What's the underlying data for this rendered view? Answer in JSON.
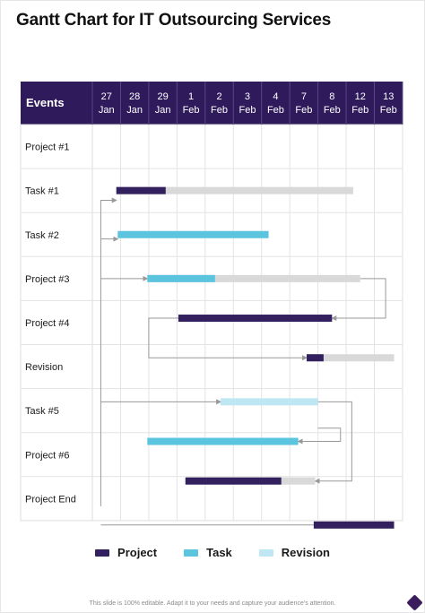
{
  "title": "Gantt Chart for IT Outsourcing Services",
  "footer": "This slide is 100% editable. Adapt it to your needs and capture your audience's attention.",
  "colors": {
    "header_bg": "#2f1b5c",
    "project": "#33205e",
    "task": "#5bc4de",
    "revision": "#bfe7f3",
    "remaining": "#d9d9d9",
    "grid": "#dcdcdc",
    "connector": "#999999"
  },
  "chart_data": {
    "type": "gantt",
    "title": "Gantt Chart for IT Outsourcing Services",
    "header_label": "Events",
    "columns": [
      {
        "day": "27",
        "month": "Jan"
      },
      {
        "day": "28",
        "month": "Jan"
      },
      {
        "day": "29",
        "month": "Jan"
      },
      {
        "day": "1",
        "month": "Feb"
      },
      {
        "day": "2",
        "month": "Feb"
      },
      {
        "day": "3",
        "month": "Feb"
      },
      {
        "day": "4",
        "month": "Feb"
      },
      {
        "day": "7",
        "month": "Feb"
      },
      {
        "day": "8",
        "month": "Feb"
      },
      {
        "day": "12",
        "month": "Feb"
      },
      {
        "day": "13",
        "month": "Feb"
      }
    ],
    "rows": [
      "Project #1",
      "Task #1",
      "Task #2",
      "Project #3",
      "Project #4",
      "Revision",
      "Task #5",
      "Project #6",
      "Project End"
    ],
    "bars": [
      {
        "row": 1,
        "category": "project",
        "start": 0.85,
        "end": 2.6,
        "bar_end": 9.25
      },
      {
        "row": 2,
        "category": "task",
        "start": 0.9,
        "end": 6.25
      },
      {
        "row": 3,
        "category": "task",
        "start": 1.95,
        "end": 4.35,
        "bar_end": 9.5
      },
      {
        "row": 3.9,
        "category": "project",
        "start": 3.05,
        "end": 8.5
      },
      {
        "row": 4.8,
        "category": "project",
        "start": 7.6,
        "end": 8.2,
        "bar_end": 10.7
      },
      {
        "row": 5.8,
        "category": "revision",
        "start": 4.55,
        "end": 8.0
      },
      {
        "row": 6.7,
        "category": "task",
        "start": 1.95,
        "end": 7.3
      },
      {
        "row": 7.6,
        "category": "project",
        "start": 3.3,
        "end": 6.7,
        "bar_end": 7.9
      },
      {
        "row": 8.6,
        "category": "project",
        "start": 7.85,
        "end": 10.7
      }
    ],
    "legend": [
      {
        "label": "Project",
        "category": "project"
      },
      {
        "label": "Task",
        "category": "task"
      },
      {
        "label": "Revision",
        "category": "revision"
      }
    ],
    "legend_position": "bottom"
  }
}
